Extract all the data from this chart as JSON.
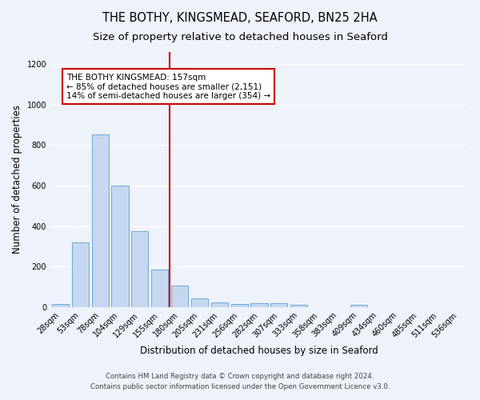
{
  "title": "THE BOTHY, KINGSMEAD, SEAFORD, BN25 2HA",
  "subtitle": "Size of property relative to detached houses in Seaford",
  "xlabel": "Distribution of detached houses by size in Seaford",
  "ylabel": "Number of detached properties",
  "footnote1": "Contains HM Land Registry data © Crown copyright and database right 2024.",
  "footnote2": "Contains public sector information licensed under the Open Government Licence v3.0.",
  "bar_labels": [
    "28sqm",
    "53sqm",
    "78sqm",
    "104sqm",
    "129sqm",
    "155sqm",
    "180sqm",
    "205sqm",
    "231sqm",
    "256sqm",
    "282sqm",
    "307sqm",
    "333sqm",
    "358sqm",
    "383sqm",
    "409sqm",
    "434sqm",
    "460sqm",
    "485sqm",
    "511sqm",
    "536sqm"
  ],
  "bar_values": [
    15,
    320,
    855,
    600,
    375,
    185,
    105,
    45,
    25,
    15,
    20,
    20,
    10,
    0,
    0,
    10,
    0,
    0,
    0,
    0,
    0
  ],
  "bar_color": "#c5d8f0",
  "bar_edge_color": "#5a9fd4",
  "ylim": [
    0,
    1260
  ],
  "yticks": [
    0,
    200,
    400,
    600,
    800,
    1000,
    1200
  ],
  "vline_x": 5.5,
  "vline_color": "#cc0000",
  "annotation_title": "THE BOTHY KINGSMEAD: 157sqm",
  "annotation_line1": "← 85% of detached houses are smaller (2,151)",
  "annotation_line2": "14% of semi-detached houses are larger (354) →",
  "bg_color": "#eef2fa",
  "grid_color": "#ffffff",
  "title_fontsize": 10.5,
  "subtitle_fontsize": 9.5,
  "axis_label_fontsize": 8.5,
  "tick_fontsize": 7,
  "annotation_fontsize": 7.5,
  "footnote_fontsize": 6.2
}
